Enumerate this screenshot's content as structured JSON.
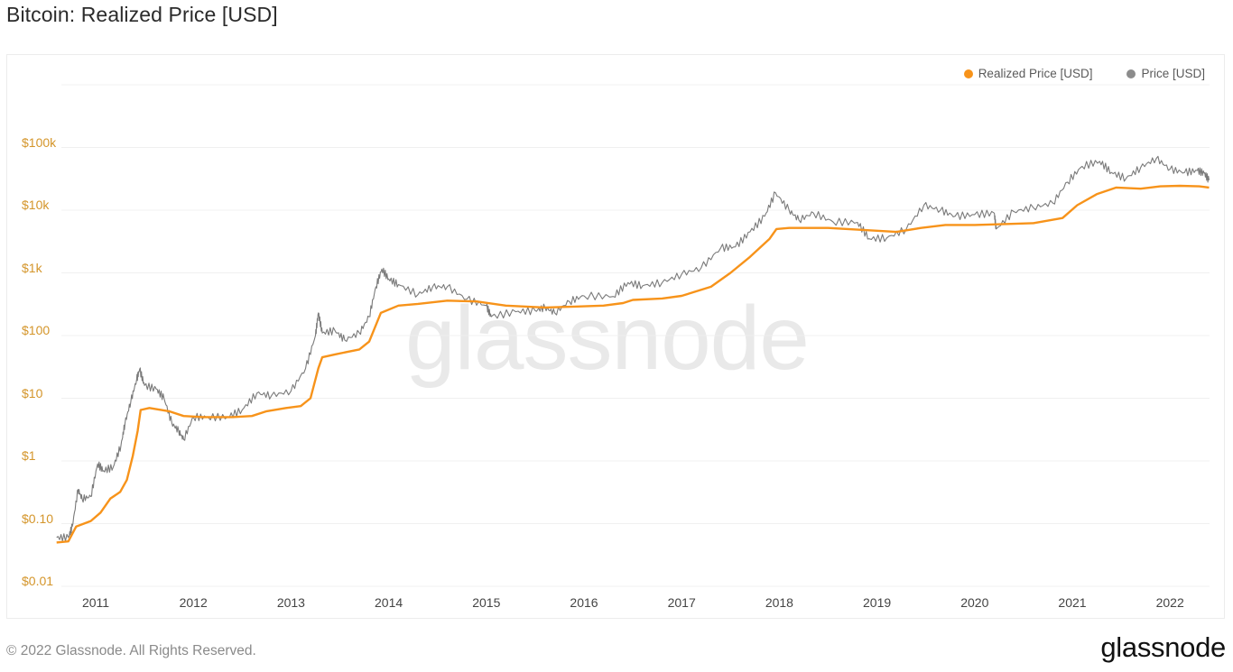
{
  "header": {
    "title": "Bitcoin: Realized Price [USD]"
  },
  "legend": {
    "items": [
      {
        "label": "Realized Price [USD]",
        "color": "#f7931a"
      },
      {
        "label": "Price [USD]",
        "color": "#8c8c8c"
      }
    ]
  },
  "watermark": "glassnode",
  "footer": {
    "copyright": "© 2022 Glassnode. All Rights Reserved.",
    "logo": "glassnode"
  },
  "colors": {
    "realized": "#f7931a",
    "price": "#7a7a7a",
    "axis_label": "#d4952a",
    "grid": "#f0f0f0"
  },
  "chart_data": {
    "type": "line",
    "title": "Bitcoin: Realized Price [USD]",
    "xlabel": "",
    "ylabel": "",
    "yscale": "log",
    "ylim": [
      0.01,
      1000000
    ],
    "xlim": [
      2010.6,
      2022.4
    ],
    "grid": true,
    "legend_position": "top-right",
    "y_ticks": [
      {
        "value": 100000,
        "label": "$100k"
      },
      {
        "value": 10000,
        "label": "$10k"
      },
      {
        "value": 1000,
        "label": "$1k"
      },
      {
        "value": 100,
        "label": "$100"
      },
      {
        "value": 10,
        "label": "$10"
      },
      {
        "value": 1,
        "label": "$1"
      },
      {
        "value": 0.1,
        "label": "$0.10"
      },
      {
        "value": 0.01,
        "label": "$0.01"
      }
    ],
    "x_ticks": [
      "2011",
      "2012",
      "2013",
      "2014",
      "2015",
      "2016",
      "2017",
      "2018",
      "2019",
      "2020",
      "2021",
      "2022"
    ],
    "series": [
      {
        "name": "Realized Price [USD]",
        "color": "#f7931a",
        "points": [
          [
            2010.6,
            0.05
          ],
          [
            2010.72,
            0.052
          ],
          [
            2010.8,
            0.09
          ],
          [
            2010.95,
            0.11
          ],
          [
            2011.05,
            0.15
          ],
          [
            2011.15,
            0.25
          ],
          [
            2011.25,
            0.32
          ],
          [
            2011.32,
            0.5
          ],
          [
            2011.38,
            1.2
          ],
          [
            2011.43,
            3.0
          ],
          [
            2011.46,
            6.5
          ],
          [
            2011.55,
            7.0
          ],
          [
            2011.75,
            6.2
          ],
          [
            2011.9,
            5.2
          ],
          [
            2012.1,
            5.0
          ],
          [
            2012.4,
            5.0
          ],
          [
            2012.6,
            5.2
          ],
          [
            2012.75,
            6.2
          ],
          [
            2012.95,
            7.0
          ],
          [
            2013.1,
            7.5
          ],
          [
            2013.2,
            10
          ],
          [
            2013.28,
            30
          ],
          [
            2013.32,
            45
          ],
          [
            2013.45,
            50
          ],
          [
            2013.7,
            60
          ],
          [
            2013.8,
            80
          ],
          [
            2013.92,
            230
          ],
          [
            2014.1,
            300
          ],
          [
            2014.3,
            320
          ],
          [
            2014.6,
            360
          ],
          [
            2014.9,
            350
          ],
          [
            2015.2,
            300
          ],
          [
            2015.6,
            280
          ],
          [
            2015.9,
            290
          ],
          [
            2016.2,
            300
          ],
          [
            2016.4,
            330
          ],
          [
            2016.5,
            370
          ],
          [
            2016.8,
            390
          ],
          [
            2017.0,
            430
          ],
          [
            2017.3,
            600
          ],
          [
            2017.5,
            1000
          ],
          [
            2017.7,
            1800
          ],
          [
            2017.9,
            3500
          ],
          [
            2017.97,
            5000
          ],
          [
            2018.1,
            5200
          ],
          [
            2018.5,
            5200
          ],
          [
            2018.9,
            4800
          ],
          [
            2019.2,
            4500
          ],
          [
            2019.45,
            5200
          ],
          [
            2019.7,
            5800
          ],
          [
            2020.0,
            5800
          ],
          [
            2020.3,
            6000
          ],
          [
            2020.6,
            6200
          ],
          [
            2020.9,
            7500
          ],
          [
            2021.05,
            12000
          ],
          [
            2021.25,
            18000
          ],
          [
            2021.45,
            23000
          ],
          [
            2021.7,
            22000
          ],
          [
            2021.9,
            24000
          ],
          [
            2022.1,
            24500
          ],
          [
            2022.3,
            24000
          ],
          [
            2022.4,
            23000
          ]
        ]
      },
      {
        "name": "Price [USD]",
        "color": "#8c8c8c",
        "points": [
          [
            2010.6,
            0.06
          ],
          [
            2010.72,
            0.06
          ],
          [
            2010.76,
            0.09
          ],
          [
            2010.82,
            0.35
          ],
          [
            2010.86,
            0.25
          ],
          [
            2010.95,
            0.27
          ],
          [
            2011.02,
            0.9
          ],
          [
            2011.08,
            0.7
          ],
          [
            2011.18,
            0.8
          ],
          [
            2011.26,
            1.8
          ],
          [
            2011.3,
            4
          ],
          [
            2011.36,
            9
          ],
          [
            2011.42,
            20
          ],
          [
            2011.45,
            29
          ],
          [
            2011.5,
            16
          ],
          [
            2011.62,
            14
          ],
          [
            2011.7,
            10
          ],
          [
            2011.78,
            4
          ],
          [
            2011.85,
            3
          ],
          [
            2011.9,
            2.2
          ],
          [
            2012.0,
            5
          ],
          [
            2012.15,
            5
          ],
          [
            2012.35,
            5
          ],
          [
            2012.5,
            6.5
          ],
          [
            2012.65,
            12
          ],
          [
            2012.8,
            11
          ],
          [
            2013.0,
            13
          ],
          [
            2013.15,
            30
          ],
          [
            2013.25,
            100
          ],
          [
            2013.28,
            230
          ],
          [
            2013.32,
            110
          ],
          [
            2013.45,
            120
          ],
          [
            2013.55,
            85
          ],
          [
            2013.7,
            110
          ],
          [
            2013.8,
            200
          ],
          [
            2013.87,
            600
          ],
          [
            2013.93,
            1150
          ],
          [
            2014.0,
            800
          ],
          [
            2014.1,
            650
          ],
          [
            2014.3,
            450
          ],
          [
            2014.45,
            600
          ],
          [
            2014.6,
            600
          ],
          [
            2014.8,
            380
          ],
          [
            2015.0,
            300
          ],
          [
            2015.05,
            200
          ],
          [
            2015.3,
            240
          ],
          [
            2015.5,
            250
          ],
          [
            2015.6,
            280
          ],
          [
            2015.7,
            230
          ],
          [
            2015.85,
            350
          ],
          [
            2016.0,
            430
          ],
          [
            2016.3,
            420
          ],
          [
            2016.45,
            700
          ],
          [
            2016.6,
            620
          ],
          [
            2016.8,
            700
          ],
          [
            2017.0,
            950
          ],
          [
            2017.2,
            1200
          ],
          [
            2017.4,
            2500
          ],
          [
            2017.55,
            2600
          ],
          [
            2017.7,
            4500
          ],
          [
            2017.85,
            8000
          ],
          [
            2017.96,
            19000
          ],
          [
            2018.1,
            10000
          ],
          [
            2018.2,
            7000
          ],
          [
            2018.35,
            9000
          ],
          [
            2018.55,
            6500
          ],
          [
            2018.8,
            6400
          ],
          [
            2018.92,
            3500
          ],
          [
            2019.1,
            3600
          ],
          [
            2019.3,
            5000
          ],
          [
            2019.48,
            12000
          ],
          [
            2019.65,
            10000
          ],
          [
            2019.8,
            8000
          ],
          [
            2020.0,
            8500
          ],
          [
            2020.2,
            9000
          ],
          [
            2020.22,
            5000
          ],
          [
            2020.4,
            9500
          ],
          [
            2020.6,
            11000
          ],
          [
            2020.8,
            13000
          ],
          [
            2020.95,
            28000
          ],
          [
            2021.1,
            50000
          ],
          [
            2021.28,
            60000
          ],
          [
            2021.4,
            40000
          ],
          [
            2021.55,
            32000
          ],
          [
            2021.7,
            48000
          ],
          [
            2021.86,
            67000
          ],
          [
            2022.0,
            45000
          ],
          [
            2022.15,
            40000
          ],
          [
            2022.28,
            43000
          ],
          [
            2022.35,
            39000
          ],
          [
            2022.4,
            30000
          ]
        ]
      }
    ]
  }
}
